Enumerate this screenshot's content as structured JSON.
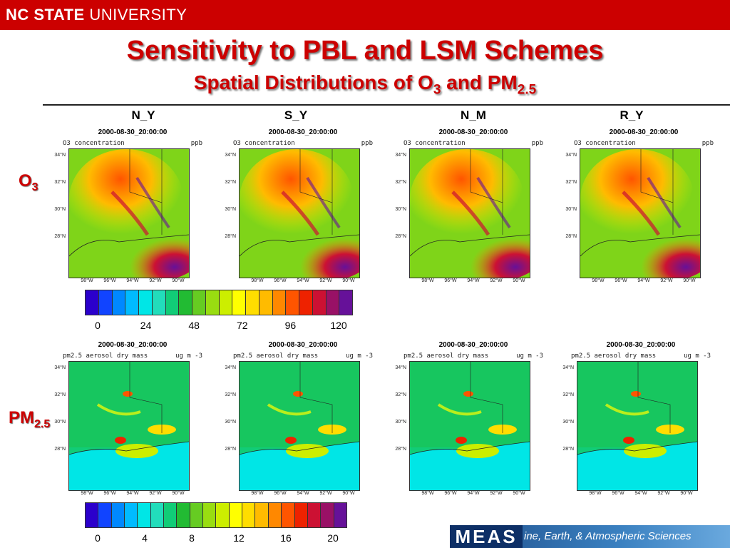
{
  "header": {
    "brand_bold": "NC STATE",
    "brand_rest": "UNIVERSITY",
    "title": "Sensitivity to PBL and LSM Schemes",
    "subtitle_pre": "Spatial Distributions of O",
    "subtitle_sub1": "3",
    "subtitle_mid": " and PM",
    "subtitle_sub2": "2.5"
  },
  "columns": [
    "N_Y",
    "S_Y",
    "N_M",
    "R_Y"
  ],
  "rows": [
    {
      "label": "O",
      "sub": "3"
    },
    {
      "label": "PM",
      "sub": "2.5"
    }
  ],
  "panel": {
    "date": "2000-08-30_20:00:00",
    "o3_var": "O3 concentration",
    "o3_unit": "ppb",
    "pm_var": "pm2.5 aerosol dry mass",
    "pm_unit": "ug m -3",
    "lat_ticks": [
      "34°N",
      "32°N",
      "30°N",
      "28°N"
    ],
    "lon_ticks": [
      "98°W",
      "96°W",
      "94°W",
      "92°W",
      "90°W"
    ]
  },
  "colorbar_o3": {
    "labels": [
      "0",
      "24",
      "48",
      "72",
      "96",
      "120"
    ],
    "colors": [
      "#2b00cc",
      "#1144ff",
      "#0088ff",
      "#00bbff",
      "#00e6e6",
      "#22ddbb",
      "#11cc77",
      "#22bb33",
      "#66cc22",
      "#99dd11",
      "#ccee00",
      "#ffff00",
      "#ffdd00",
      "#ffbb00",
      "#ff8800",
      "#ff5500",
      "#ee2200",
      "#cc1133",
      "#991166",
      "#661199"
    ]
  },
  "colorbar_pm": {
    "labels": [
      "0",
      "4",
      "8",
      "12",
      "16",
      "20"
    ],
    "colors": [
      "#2b00cc",
      "#1144ff",
      "#0088ff",
      "#00bbff",
      "#00e6e6",
      "#22ddbb",
      "#11cc77",
      "#22bb33",
      "#66cc22",
      "#99dd11",
      "#ccee00",
      "#ffff00",
      "#ffdd00",
      "#ffbb00",
      "#ff8800",
      "#ff5500",
      "#ee2200",
      "#cc1133",
      "#991166",
      "#661199"
    ]
  },
  "footer": {
    "logo": "MEAS",
    "text": "ine, Earth, & Atmospheric Sciences"
  }
}
